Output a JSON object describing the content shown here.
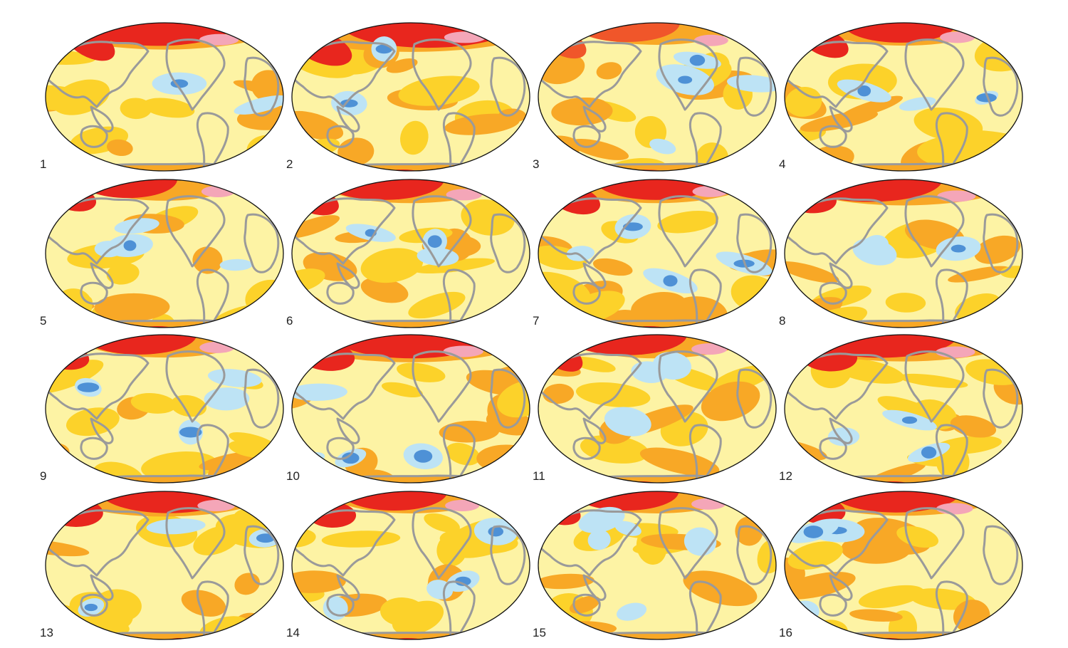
{
  "figure": {
    "panels": [
      {
        "label": "1",
        "warm_north": "#e8261e",
        "north_extent": 0.8,
        "blue_patches": 2,
        "seed": 11
      },
      {
        "label": "2",
        "warm_north": "#e8261e",
        "north_extent": 0.95,
        "blue_patches": 2,
        "seed": 23
      },
      {
        "label": "3",
        "warm_north": "#f0562a",
        "north_extent": 0.5,
        "blue_patches": 4,
        "seed": 37
      },
      {
        "label": "4",
        "warm_north": "#e8261e",
        "north_extent": 0.55,
        "blue_patches": 3,
        "seed": 41
      },
      {
        "label": "5",
        "warm_north": "#e8261e",
        "north_extent": 0.45,
        "blue_patches": 4,
        "seed": 53
      },
      {
        "label": "6",
        "warm_north": "#e8261e",
        "north_extent": 0.6,
        "blue_patches": 3,
        "seed": 67
      },
      {
        "label": "7",
        "warm_north": "#e8261e",
        "north_extent": 0.6,
        "blue_patches": 4,
        "seed": 71
      },
      {
        "label": "8",
        "warm_north": "#e8261e",
        "north_extent": 0.75,
        "blue_patches": 3,
        "seed": 83
      },
      {
        "label": "9",
        "warm_north": "#e8261e",
        "north_extent": 0.55,
        "blue_patches": 4,
        "seed": 97
      },
      {
        "label": "10",
        "warm_north": "#e8261e",
        "north_extent": 0.85,
        "blue_patches": 4,
        "seed": 101
      },
      {
        "label": "11",
        "warm_north": "#e8261e",
        "north_extent": 0.6,
        "blue_patches": 3,
        "seed": 113
      },
      {
        "label": "12",
        "warm_north": "#e8261e",
        "north_extent": 0.8,
        "blue_patches": 3,
        "seed": 127
      },
      {
        "label": "13",
        "warm_north": "#e8261e",
        "north_extent": 0.7,
        "blue_patches": 3,
        "seed": 131
      },
      {
        "label": "14",
        "warm_north": "#e8261e",
        "north_extent": 0.5,
        "blue_patches": 4,
        "seed": 149
      },
      {
        "label": "15",
        "warm_north": "#e8261e",
        "north_extent": 0.5,
        "blue_patches": 5,
        "seed": 151
      },
      {
        "label": "16",
        "warm_north": "#e8261e",
        "north_extent": 0.65,
        "blue_patches": 3,
        "seed": 163
      }
    ],
    "palette": {
      "pale_yellow": "#fdf3a4",
      "yellow": "#fcd22a",
      "orange": "#f8a826",
      "red": "#e8261e",
      "pink": "#f4a6b8",
      "light_blue": "#bde3f5",
      "mid_blue": "#4e91d6",
      "dark_blue": "#2f5fb8",
      "coast": "#9a9a9a",
      "outline": "#111111"
    }
  }
}
